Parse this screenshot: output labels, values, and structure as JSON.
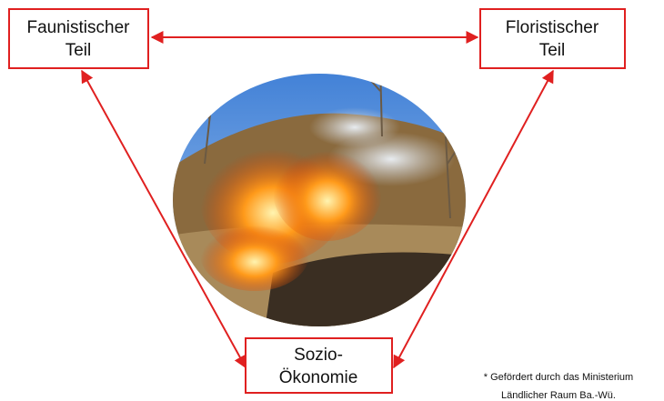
{
  "nodes": [
    {
      "lines": [
        "Faunistischer",
        "Teil"
      ]
    },
    {
      "lines": [
        "Floristischer",
        "Teil"
      ]
    },
    {
      "lines": [
        "Sozio-",
        "Ökonomie"
      ]
    }
  ],
  "footnote": [
    "* Gefördert durch das Ministerium",
    "Ländlicher Raum Ba.-Wü."
  ]
}
